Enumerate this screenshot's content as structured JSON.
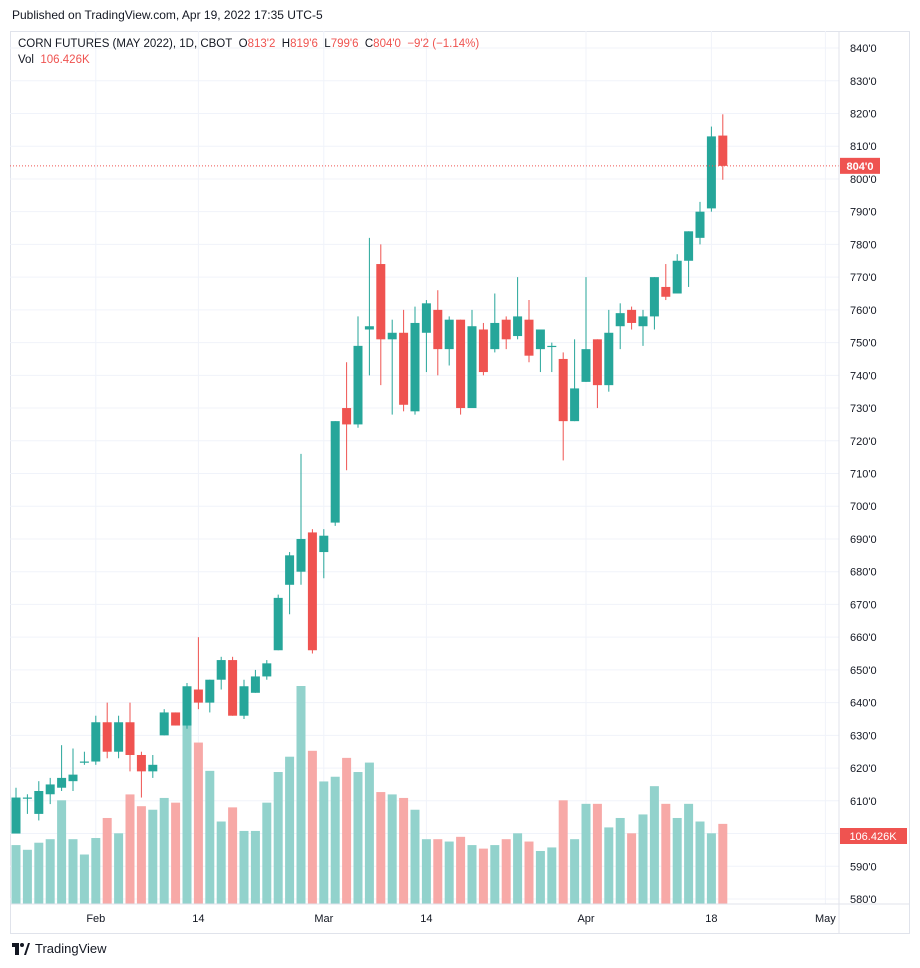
{
  "header": {
    "published": "Published on TradingView.com, Apr 19, 2022 17:35 UTC-5"
  },
  "legend": {
    "symbol": "CORN FUTURES (MAY 2022), 1D, CBOT",
    "open_label": "O",
    "open": "813'2",
    "high_label": "H",
    "high": "819'6",
    "low_label": "L",
    "low": "799'6",
    "close_label": "C",
    "close": "804'0",
    "change": "−9'2 (−1.14%)",
    "vol_label": "Vol",
    "vol": "106.426K"
  },
  "footer": {
    "brand": "TradingView",
    "logo_icon": "tradingview-logo-icon"
  },
  "colors": {
    "up": "#26a69a",
    "down": "#ef5350",
    "vol_up": "#92d2cc",
    "vol_down": "#f7a9a7",
    "grid": "#f0f3fa"
  },
  "chart_data": {
    "type": "candlestick",
    "x_ticks": [
      {
        "label": "Feb",
        "date": "2022-02-01"
      },
      {
        "label": "14",
        "date": "2022-02-14"
      },
      {
        "label": "Mar",
        "date": "2022-03-01"
      },
      {
        "label": "14",
        "date": "2022-03-14"
      },
      {
        "label": "Apr",
        "date": "2022-04-01"
      },
      {
        "label": "18",
        "date": "2022-04-18"
      },
      {
        "label": "May",
        "date": "2022-05-02"
      }
    ],
    "y_ticks": [
      "580'0",
      "590'0",
      "600'0",
      "610'0",
      "620'0",
      "630'0",
      "640'0",
      "650'0",
      "660'0",
      "670'0",
      "680'0",
      "690'0",
      "700'0",
      "710'0",
      "720'0",
      "730'0",
      "740'0",
      "750'0",
      "760'0",
      "770'0",
      "780'0",
      "790'0",
      "800'0",
      "810'0",
      "820'0",
      "830'0",
      "840'0"
    ],
    "ylim": [
      578.5,
      843
    ],
    "last_price_label": "804'0",
    "last_price": 804.0,
    "last_volume_label": "106.426K",
    "volume_max": 185,
    "candles": [
      {
        "d": "2022-01-21",
        "o": 600,
        "h": 614,
        "l": 600,
        "c": 611,
        "v": 50
      },
      {
        "d": "2022-01-24",
        "o": 611,
        "h": 612,
        "l": 606,
        "c": 611,
        "v": 46
      },
      {
        "d": "2022-01-25",
        "o": 606,
        "h": 616,
        "l": 604,
        "c": 613,
        "v": 52
      },
      {
        "d": "2022-01-26",
        "o": 612,
        "h": 617,
        "l": 609,
        "c": 615,
        "v": 55
      },
      {
        "d": "2022-01-27",
        "o": 614,
        "h": 627,
        "l": 613,
        "c": 617,
        "v": 88
      },
      {
        "d": "2022-01-28",
        "o": 616,
        "h": 626,
        "l": 613,
        "c": 618,
        "v": 55
      },
      {
        "d": "2022-01-31",
        "o": 622,
        "h": 625,
        "l": 621,
        "c": 622,
        "v": 42
      },
      {
        "d": "2022-02-01",
        "o": 622,
        "h": 636,
        "l": 621,
        "c": 634,
        "v": 56
      },
      {
        "d": "2022-02-02",
        "o": 634,
        "h": 640,
        "l": 623,
        "c": 625,
        "v": 73
      },
      {
        "d": "2022-02-03",
        "o": 625,
        "h": 636,
        "l": 623,
        "c": 634,
        "v": 60
      },
      {
        "d": "2022-02-04",
        "o": 634,
        "h": 640,
        "l": 619,
        "c": 624,
        "v": 93
      },
      {
        "d": "2022-02-07",
        "o": 624,
        "h": 625,
        "l": 611,
        "c": 619,
        "v": 83
      },
      {
        "d": "2022-02-08",
        "o": 619,
        "h": 624,
        "l": 617,
        "c": 621,
        "v": 80
      },
      {
        "d": "2022-02-09",
        "o": 630,
        "h": 638,
        "l": 630,
        "c": 637,
        "v": 90
      },
      {
        "d": "2022-02-10",
        "o": 637,
        "h": 637,
        "l": 633,
        "c": 633,
        "v": 86
      },
      {
        "d": "2022-02-11",
        "o": 633,
        "h": 646,
        "l": 632,
        "c": 645,
        "v": 155
      },
      {
        "d": "2022-02-14",
        "o": 644,
        "h": 660,
        "l": 638,
        "c": 640,
        "v": 137
      },
      {
        "d": "2022-02-15",
        "o": 640,
        "h": 647,
        "l": 637,
        "c": 647,
        "v": 113
      },
      {
        "d": "2022-02-16",
        "o": 647,
        "h": 654,
        "l": 644,
        "c": 653,
        "v": 70
      },
      {
        "d": "2022-02-17",
        "o": 653,
        "h": 654,
        "l": 636,
        "c": 636,
        "v": 82
      },
      {
        "d": "2022-02-18",
        "o": 636,
        "h": 647,
        "l": 635,
        "c": 645,
        "v": 62
      },
      {
        "d": "2022-02-21",
        "o": 643,
        "h": 650,
        "l": 643,
        "c": 648,
        "v": 62
      },
      {
        "d": "2022-02-22",
        "o": 648,
        "h": 653,
        "l": 647,
        "c": 652,
        "v": 86
      },
      {
        "d": "2022-02-23",
        "o": 656,
        "h": 673,
        "l": 656,
        "c": 672,
        "v": 112
      },
      {
        "d": "2022-02-24",
        "o": 676,
        "h": 686,
        "l": 667,
        "c": 685,
        "v": 125
      },
      {
        "d": "2022-02-25",
        "o": 680,
        "h": 716,
        "l": 676,
        "c": 690,
        "v": 185
      },
      {
        "d": "2022-02-28",
        "o": 692,
        "h": 693,
        "l": 655,
        "c": 656,
        "v": 130
      },
      {
        "d": "2022-03-01",
        "o": 686,
        "h": 693,
        "l": 678,
        "c": 691,
        "v": 104
      },
      {
        "d": "2022-03-02",
        "o": 695,
        "h": 726,
        "l": 694,
        "c": 726,
        "v": 108
      },
      {
        "d": "2022-03-03",
        "o": 730,
        "h": 744,
        "l": 711,
        "c": 725,
        "v": 124
      },
      {
        "d": "2022-03-04",
        "o": 725,
        "h": 758,
        "l": 724,
        "c": 749,
        "v": 112
      },
      {
        "d": "2022-03-07",
        "o": 754,
        "h": 782,
        "l": 740,
        "c": 755,
        "v": 120
      },
      {
        "d": "2022-03-08",
        "o": 774,
        "h": 780,
        "l": 737,
        "c": 751,
        "v": 95
      },
      {
        "d": "2022-03-09",
        "o": 751,
        "h": 757,
        "l": 728,
        "c": 753,
        "v": 93
      },
      {
        "d": "2022-03-10",
        "o": 753,
        "h": 760,
        "l": 729,
        "c": 731,
        "v": 90
      },
      {
        "d": "2022-03-11",
        "o": 729,
        "h": 761,
        "l": 728,
        "c": 756,
        "v": 80
      },
      {
        "d": "2022-03-14",
        "o": 753,
        "h": 763,
        "l": 741,
        "c": 762,
        "v": 55
      },
      {
        "d": "2022-03-15",
        "o": 760,
        "h": 766,
        "l": 740,
        "c": 748,
        "v": 55
      },
      {
        "d": "2022-03-16",
        "o": 748,
        "h": 758,
        "l": 743,
        "c": 757,
        "v": 53
      },
      {
        "d": "2022-03-17",
        "o": 757,
        "h": 757,
        "l": 728,
        "c": 730,
        "v": 57
      },
      {
        "d": "2022-03-18",
        "o": 730,
        "h": 760,
        "l": 730,
        "c": 755,
        "v": 50
      },
      {
        "d": "2022-03-21",
        "o": 754,
        "h": 756,
        "l": 740,
        "c": 741,
        "v": 47
      },
      {
        "d": "2022-03-22",
        "o": 748,
        "h": 765,
        "l": 747,
        "c": 756,
        "v": 50
      },
      {
        "d": "2022-03-23",
        "o": 757,
        "h": 758,
        "l": 748,
        "c": 751,
        "v": 55
      },
      {
        "d": "2022-03-24",
        "o": 752,
        "h": 770,
        "l": 751,
        "c": 758,
        "v": 60
      },
      {
        "d": "2022-03-25",
        "o": 757,
        "h": 763,
        "l": 744,
        "c": 746,
        "v": 53
      },
      {
        "d": "2022-03-28",
        "o": 748,
        "h": 752,
        "l": 741,
        "c": 754,
        "v": 45
      },
      {
        "d": "2022-03-29",
        "o": 749,
        "h": 750,
        "l": 741,
        "c": 749,
        "v": 48
      },
      {
        "d": "2022-03-30",
        "o": 745,
        "h": 747,
        "l": 714,
        "c": 726,
        "v": 88
      },
      {
        "d": "2022-03-31",
        "o": 726,
        "h": 751,
        "l": 726,
        "c": 736,
        "v": 55
      },
      {
        "d": "2022-04-01",
        "o": 738,
        "h": 770,
        "l": 738,
        "c": 748,
        "v": 85
      },
      {
        "d": "2022-04-04",
        "o": 751,
        "h": 751,
        "l": 730,
        "c": 737,
        "v": 85
      },
      {
        "d": "2022-04-05",
        "o": 737,
        "h": 760,
        "l": 735,
        "c": 753,
        "v": 65
      },
      {
        "d": "2022-04-06",
        "o": 755,
        "h": 762,
        "l": 748,
        "c": 759,
        "v": 73
      },
      {
        "d": "2022-04-07",
        "o": 760,
        "h": 761,
        "l": 754,
        "c": 756,
        "v": 60
      },
      {
        "d": "2022-04-08",
        "o": 755,
        "h": 760,
        "l": 749,
        "c": 758,
        "v": 76
      },
      {
        "d": "2022-04-11",
        "o": 758,
        "h": 770,
        "l": 754,
        "c": 770,
        "v": 100
      },
      {
        "d": "2022-04-12",
        "o": 767,
        "h": 774,
        "l": 763,
        "c": 764,
        "v": 85
      },
      {
        "d": "2022-04-13",
        "o": 765,
        "h": 777,
        "l": 765,
        "c": 775,
        "v": 73
      },
      {
        "d": "2022-04-14",
        "o": 775,
        "h": 784,
        "l": 767,
        "c": 784,
        "v": 85
      },
      {
        "d": "2022-04-15",
        "o": 782,
        "h": 793,
        "l": 780,
        "c": 790,
        "v": 70
      },
      {
        "d": "2022-04-18",
        "o": 791,
        "h": 816,
        "l": 790,
        "c": 813,
        "v": 60
      },
      {
        "d": "2022-04-19",
        "o": 813.25,
        "h": 819.75,
        "l": 799.75,
        "c": 804,
        "v": 68
      }
    ]
  }
}
